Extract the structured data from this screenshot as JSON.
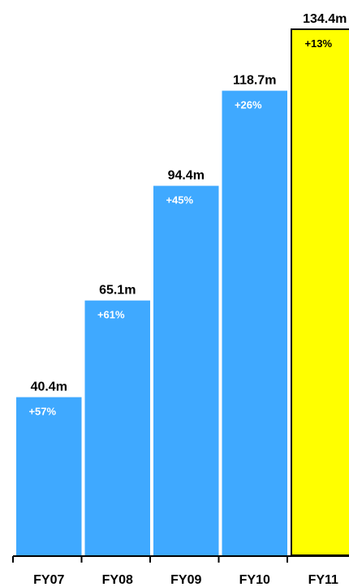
{
  "chart_data": {
    "type": "bar",
    "title": "",
    "xlabel": "",
    "ylabel": "",
    "categories": [
      "FY07",
      "FY08",
      "FY09",
      "FY10",
      "FY11"
    ],
    "values": [
      40.4,
      65.1,
      94.4,
      118.7,
      134.4
    ],
    "value_labels": [
      "40.4m",
      "65.1m",
      "94.4m",
      "118.7m",
      "134.4m"
    ],
    "growth_labels": [
      "+57%",
      "+61%",
      "+45%",
      "+26%",
      "+13%"
    ],
    "ylim": [
      0,
      134.4
    ],
    "grid": false,
    "colors": {
      "bar": "#3fa9ff",
      "highlight_bar": "#ffff00",
      "highlight_border": "#000000",
      "growth_text": "#ffffff",
      "growth_text_highlight": "#000000"
    },
    "highlight_index": 4
  }
}
